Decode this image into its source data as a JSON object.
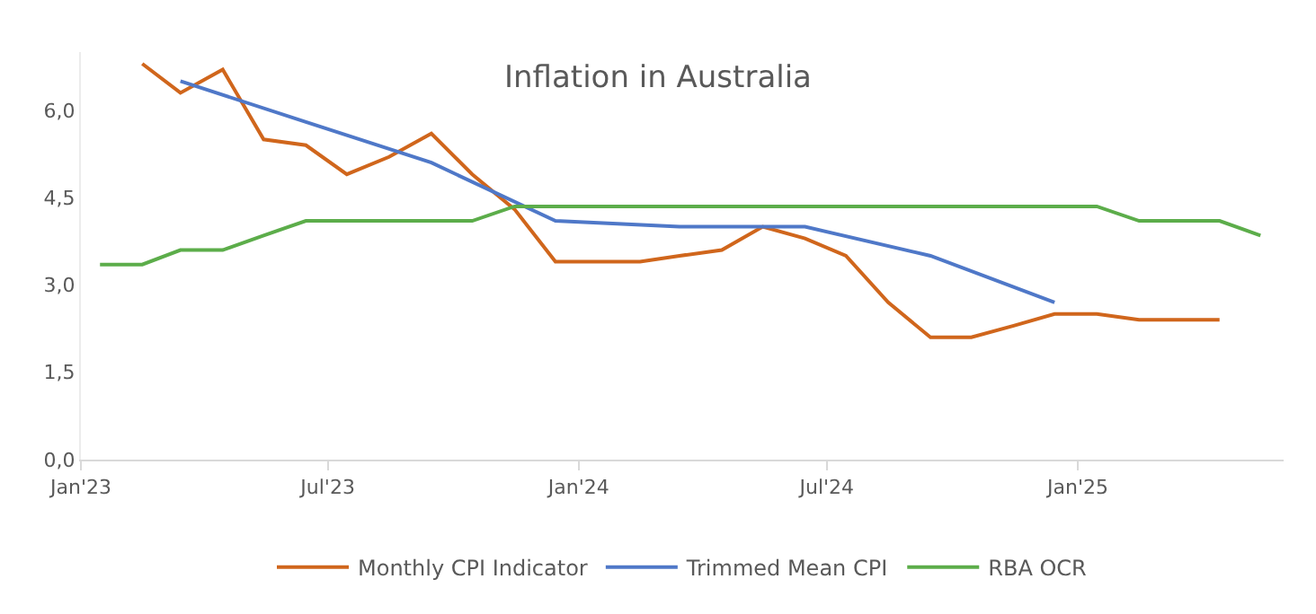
{
  "chart_data": {
    "type": "line",
    "title": "Inflation in Australia",
    "x": [
      "2023-01-15",
      "2023-02-15",
      "2023-03-15",
      "2023-04-15",
      "2023-05-15",
      "2023-06-15",
      "2023-07-15",
      "2023-08-15",
      "2023-09-15",
      "2023-10-15",
      "2023-11-15",
      "2023-12-15",
      "2024-01-15",
      "2024-02-15",
      "2024-03-15",
      "2024-04-15",
      "2024-05-15",
      "2024-06-15",
      "2024-07-15",
      "2024-08-15",
      "2024-09-15",
      "2024-10-15",
      "2024-11-15",
      "2024-12-15",
      "2025-01-15",
      "2025-02-15",
      "2025-03-15",
      "2025-04-15",
      "2025-05-15"
    ],
    "series": [
      {
        "name": "Monthly CPI Indicator",
        "color": "#d0661c",
        "values": [
          null,
          6.8,
          6.3,
          6.7,
          5.5,
          5.4,
          4.9,
          5.2,
          5.6,
          4.9,
          4.3,
          3.4,
          3.4,
          3.4,
          3.5,
          3.6,
          4.0,
          3.8,
          3.5,
          2.7,
          2.1,
          2.1,
          2.3,
          2.5,
          2.5,
          2.4,
          2.4,
          2.4,
          null
        ]
      },
      {
        "name": "Trimmed Mean CPI",
        "color": "#4f78c8",
        "x": [
          "2023-03-15",
          "2023-06-15",
          "2023-09-15",
          "2023-12-15",
          "2024-03-15",
          "2024-06-15",
          "2024-09-15",
          "2024-12-15"
        ],
        "values": [
          6.5,
          5.8,
          5.1,
          4.1,
          4.0,
          4.0,
          3.5,
          2.7
        ]
      },
      {
        "name": "RBA OCR",
        "color": "#5cad4a",
        "values": [
          3.35,
          3.35,
          3.6,
          3.6,
          3.85,
          4.1,
          4.1,
          4.1,
          4.1,
          4.1,
          4.35,
          4.35,
          4.35,
          4.35,
          4.35,
          4.35,
          4.35,
          4.35,
          4.35,
          4.35,
          4.35,
          4.35,
          4.35,
          4.35,
          4.35,
          4.1,
          4.1,
          4.1,
          3.85
        ]
      }
    ],
    "xlim": [
      "2023-01-01",
      "2025-06-01"
    ],
    "xticks": [
      {
        "value": "2023-01-01",
        "label": "Jan'23"
      },
      {
        "value": "2023-07-01",
        "label": "Jul'23"
      },
      {
        "value": "2024-01-01",
        "label": "Jan'24"
      },
      {
        "value": "2024-07-01",
        "label": "Jul'24"
      },
      {
        "value": "2025-01-01",
        "label": "Jan'25"
      }
    ],
    "ylim": [
      0,
      7
    ],
    "yticks": [
      {
        "value": 0,
        "label": "0,0"
      },
      {
        "value": 1.5,
        "label": "1,5"
      },
      {
        "value": 3,
        "label": "3,0"
      },
      {
        "value": 4.5,
        "label": "4,5"
      },
      {
        "value": 6,
        "label": "6,0"
      }
    ],
    "grid": false,
    "legend": "bottom",
    "marker": "none",
    "line_style": "solid"
  }
}
